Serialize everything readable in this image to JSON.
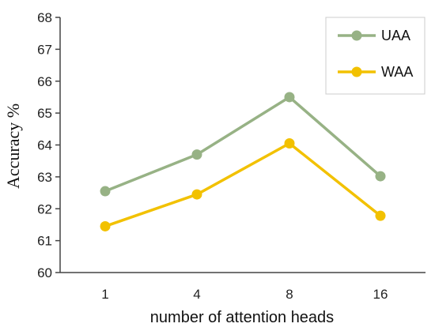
{
  "chart_data": {
    "type": "line",
    "categories": [
      "1",
      "4",
      "8",
      "16"
    ],
    "series": [
      {
        "name": "UAA",
        "values": [
          62.55,
          63.7,
          65.5,
          63.02
        ],
        "color": "#97b285"
      },
      {
        "name": "WAA",
        "values": [
          61.45,
          62.45,
          64.05,
          61.78
        ],
        "color": "#f2c100"
      }
    ],
    "xlabel": "number of attention heads",
    "ylabel": "Accuracy %",
    "ylim": [
      60,
      68
    ],
    "yticks": [
      "60",
      "61",
      "62",
      "63",
      "64",
      "65",
      "66",
      "67",
      "68"
    ],
    "grid": false,
    "legend_position": "top-right"
  }
}
